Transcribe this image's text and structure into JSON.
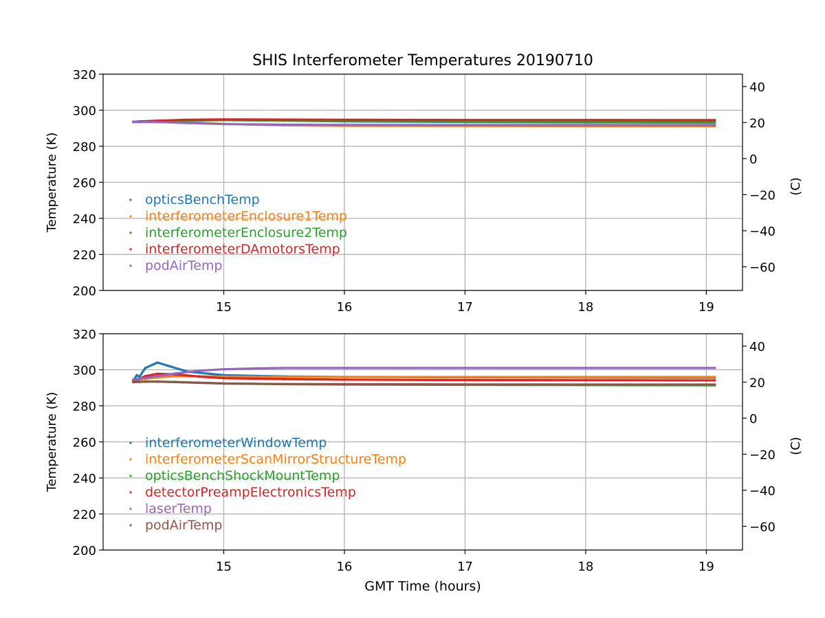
{
  "title": "SHIS Interferometer Temperatures 20190710",
  "xlabel": "GMT Time (hours)",
  "chart_data": [
    {
      "type": "scatter",
      "name": "top-panel",
      "ylabel": "Temperature (K)",
      "ylabel_right": "(C)",
      "xlim": [
        14.0,
        19.3
      ],
      "ylim": [
        200,
        320
      ],
      "ylim_right": [
        -73.15,
        46.85
      ],
      "xticks": [
        15,
        16,
        17,
        18,
        19
      ],
      "yticks": [
        200,
        220,
        240,
        260,
        280,
        300,
        320
      ],
      "yticks_right": [
        -60,
        -40,
        -20,
        0,
        20,
        40
      ],
      "grid": true,
      "legend_position": "lower-left",
      "series": [
        {
          "name": "opticsBenchTemp",
          "color": "#1f77b4",
          "x": [
            14.25,
            14.3,
            14.45,
            14.7,
            15.0,
            15.5,
            16.0,
            17.0,
            18.0,
            19.07
          ],
          "y": [
            293.5,
            293.6,
            293.9,
            294.3,
            294.5,
            294.2,
            293.8,
            293.5,
            293.3,
            293.2
          ]
        },
        {
          "name": "interferometerEnclosure1Temp",
          "color": "#ff7f0e",
          "x": [
            14.25,
            14.3,
            14.45,
            14.7,
            15.0,
            15.5,
            16.0,
            17.0,
            18.0,
            19.07
          ],
          "y": [
            293.4,
            293.5,
            293.6,
            293.3,
            292.4,
            291.6,
            291.4,
            291.3,
            291.2,
            291.2
          ]
        },
        {
          "name": "interferometerEnclosure2Temp",
          "color": "#2ca02c",
          "x": [
            14.25,
            14.3,
            14.45,
            14.7,
            15.0,
            15.5,
            16.0,
            17.0,
            18.0,
            19.07
          ],
          "y": [
            293.6,
            293.7,
            294.0,
            294.4,
            294.5,
            294.3,
            294.0,
            293.7,
            293.6,
            293.5
          ]
        },
        {
          "name": "interferometerDAmotorsTemp",
          "color": "#d62728",
          "x": [
            14.25,
            14.3,
            14.45,
            14.7,
            15.0,
            15.5,
            16.0,
            17.0,
            18.0,
            19.07
          ],
          "y": [
            293.6,
            293.8,
            294.2,
            294.7,
            294.9,
            294.8,
            294.7,
            294.6,
            294.6,
            294.5
          ]
        },
        {
          "name": "podAirTemp",
          "color": "#9467bd",
          "x": [
            14.25,
            14.3,
            14.45,
            14.7,
            15.0,
            15.5,
            16.0,
            17.0,
            18.0,
            19.07
          ],
          "y": [
            293.5,
            293.5,
            293.4,
            292.9,
            292.3,
            292.0,
            291.9,
            291.8,
            291.8,
            291.8
          ]
        }
      ]
    },
    {
      "type": "scatter",
      "name": "bottom-panel",
      "ylabel": "Temperature (K)",
      "ylabel_right": "(C)",
      "xlabel": "GMT Time (hours)",
      "xlim": [
        14.0,
        19.3
      ],
      "ylim": [
        200,
        320
      ],
      "ylim_right": [
        -73.15,
        46.85
      ],
      "xticks": [
        15,
        16,
        17,
        18,
        19
      ],
      "yticks": [
        200,
        220,
        240,
        260,
        280,
        300,
        320
      ],
      "yticks_right": [
        -60,
        -40,
        -20,
        0,
        20,
        40
      ],
      "grid": true,
      "legend_position": "lower-left",
      "series": [
        {
          "name": "interferometerWindowTemp",
          "color": "#1f77b4",
          "x": [
            14.25,
            14.28,
            14.3,
            14.35,
            14.45,
            14.55,
            14.7,
            15.0,
            15.5,
            16.0,
            17.0,
            18.0,
            19.07
          ],
          "y": [
            294.0,
            297.0,
            296.0,
            301.0,
            304.0,
            302.0,
            299.0,
            297.0,
            296.3,
            296.0,
            295.8,
            295.7,
            295.6
          ]
        },
        {
          "name": "interferometerScanMirrorStructureTemp",
          "color": "#ff7f0e",
          "x": [
            14.25,
            14.3,
            14.35,
            14.45,
            14.6,
            14.8,
            15.0,
            15.5,
            16.0,
            17.0,
            18.0,
            19.07
          ],
          "y": [
            294.0,
            294.5,
            295.0,
            295.8,
            296.5,
            296.4,
            296.2,
            296.0,
            296.0,
            296.0,
            296.0,
            296.0
          ]
        },
        {
          "name": "opticsBenchShockMountTemp",
          "color": "#2ca02c",
          "x": [
            14.25,
            14.3,
            14.35,
            14.45,
            14.6,
            14.8,
            15.0,
            15.5,
            16.0,
            17.0,
            18.0,
            19.07
          ],
          "y": [
            293.2,
            293.3,
            293.4,
            293.5,
            293.2,
            292.8,
            292.4,
            292.0,
            291.8,
            291.6,
            291.5,
            291.4
          ]
        },
        {
          "name": "detectorPreampElectronicsTemp",
          "color": "#d62728",
          "x": [
            14.25,
            14.3,
            14.35,
            14.45,
            14.6,
            14.8,
            15.0,
            15.5,
            16.0,
            17.0,
            18.0,
            19.07
          ],
          "y": [
            294.0,
            295.0,
            296.5,
            297.8,
            297.5,
            296.2,
            295.3,
            294.8,
            294.5,
            294.3,
            294.2,
            294.1
          ]
        },
        {
          "name": "laserTemp",
          "color": "#9467bd",
          "x": [
            14.25,
            14.3,
            14.35,
            14.45,
            14.6,
            14.8,
            15.0,
            15.3,
            15.5,
            16.0,
            17.0,
            18.0,
            19.07
          ],
          "y": [
            294.5,
            295.0,
            295.5,
            296.5,
            298.0,
            299.5,
            300.3,
            300.8,
            301.0,
            301.0,
            301.0,
            301.0,
            301.0
          ]
        },
        {
          "name": "podAirTemp",
          "color": "#8c564b",
          "x": [
            14.25,
            14.3,
            14.35,
            14.45,
            14.6,
            14.8,
            15.0,
            15.5,
            16.0,
            17.0,
            18.0,
            19.07
          ],
          "y": [
            293.2,
            293.3,
            293.4,
            293.4,
            293.2,
            292.8,
            292.4,
            292.1,
            292.0,
            291.9,
            291.8,
            291.8
          ]
        }
      ]
    }
  ]
}
